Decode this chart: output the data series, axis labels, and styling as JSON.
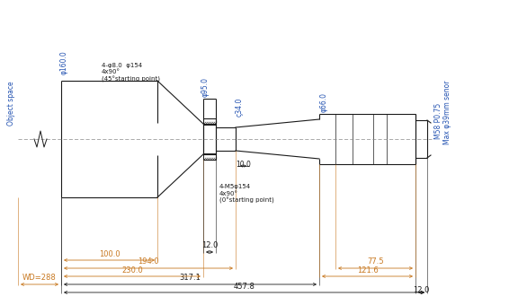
{
  "bg_color": "#ffffff",
  "line_color": "#1a1a1a",
  "dim_color_orange": "#c87820",
  "dim_color_blue": "#2050b0",
  "figsize": [
    5.76,
    3.4
  ],
  "dpi": 100,
  "dimensions": {
    "WD": "WD=288",
    "total": "457.8",
    "d317": "317.1",
    "d230": "230.0",
    "d194": "194.0",
    "d100": "100.0",
    "d12_top": "12.0",
    "d12_mid": "12.0",
    "d121": "121.6",
    "d77": "77.5",
    "d10": "10.0",
    "phi160": "φ160.0",
    "phi95": "φ95.0",
    "phi34": "ς34.0",
    "phi66": "φ66.0",
    "note1": "4-M5φ154\n4x90°\n(0°starting point)",
    "note2": "4-φ8.0  φ154\n4x90°\n(45°starting point)",
    "m58": "M58 P0.75",
    "sensor": "Max φ39mm senor",
    "obj_space": "Object space"
  }
}
